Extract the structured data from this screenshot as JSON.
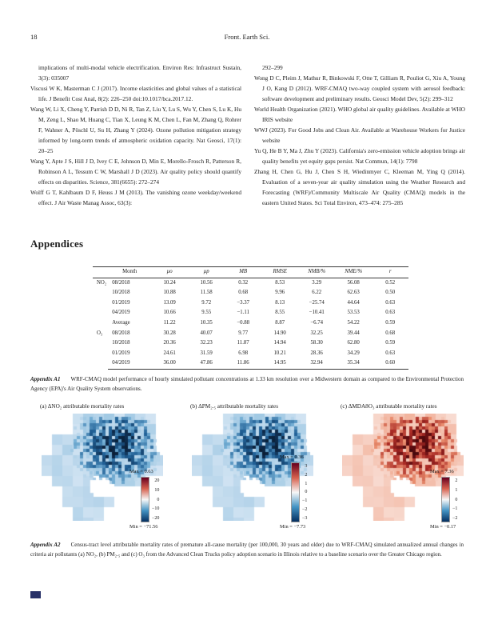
{
  "page": {
    "number": "18",
    "journal": "Front. Earth Sci."
  },
  "appendices_heading": "Appendices",
  "references": {
    "left": [
      {
        "cont": true,
        "text": "implications of multi-modal vehicle electrification. Environ Res: Infrastruct Sustain, 3(3): 035007"
      },
      {
        "cont": false,
        "text": "Viscusi W K, Masterman C J (2017). Income elasticities and global values of a statistical life. J Benefit Cost Anal, 8(2): 226–250 doi:10.1017/bca.2017.12."
      },
      {
        "cont": false,
        "text": "Wang W, Li X, Cheng Y, Parrish D D, Ni R, Tan Z, Liu Y, Lu S, Wu Y, Chen S, Lu K, Hu M, Zeng L, Shao M, Huang C, Tian X, Leung K M, Chen L, Fan M, Zhang Q, Rohrer F, Wahner A, Pöschl U, Su H, Zhang Y (2024). Ozone pollution mitigation strategy informed by long-term trends of atmospheric oxidation capacity. Nat Geosci, 17(1): 20–25"
      },
      {
        "cont": false,
        "text": "Wang Y, Apte J S, Hill J D, Ivey C E, Johnson D, Min E, Morello-Frosch R, Patterson R, Robinson A L, Tessum C W, Marshall J D (2023). Air quality policy should quantify effects on disparities. Science, 381(6655): 272–274"
      },
      {
        "cont": false,
        "text": "Wolff G T, Kahlbaum D F, Heuss J M (2013). The vanishing ozone weekday/weekend effect. J Air Waste Manag Assoc, 63(3):"
      }
    ],
    "right": [
      {
        "cont": true,
        "text": "292–299"
      },
      {
        "cont": false,
        "text": "Wong D C, Pleim J, Mathur R, Binkowski F, Otte T, Gilliam R, Pouliot G, Xiu A, Young J O, Kang D (2012). WRF-CMAQ two-way coupled system with aerosol feedback: software development and preliminary results. Geosci Model Dev, 5(2): 299–312"
      },
      {
        "cont": false,
        "text": "World Health Organization (2021). WHO global air quality guidelines. Available at WHO IRIS website"
      },
      {
        "cont": false,
        "text": "WWJ (2023). For Good Jobs and Clean Air. Available at Warehouse Workers for Justice website"
      },
      {
        "cont": false,
        "text": "Yu Q, He B Y, Ma J, Zhu Y (2023). California's zero-emission vehicle adoption brings air quality benefits yet equity gaps persist. Nat Commun, 14(1): 7798"
      },
      {
        "cont": false,
        "text": "Zhang H, Chen G, Hu J, Chen S H, Wiedinmyer C, Kleeman M, Ying Q (2014). Evaluation of a seven-year air quality simulation using the Weather Research and Forecasting (WRF)/Community Multiscale Air Quality (CMAQ) models in the eastern United States. Sci Total Environ, 473–474: 275–285"
      }
    ]
  },
  "table": {
    "col_headers": [
      "",
      "Month",
      "μo",
      "μp",
      "MB",
      "RMSE",
      "NMB/%",
      "NME/%",
      "r"
    ],
    "groups": [
      {
        "pollutant": "NO₂",
        "rows": [
          [
            "08/2018",
            "10.24",
            "10.56",
            "0.32",
            "8.53",
            "3.29",
            "56.08",
            "0.52"
          ],
          [
            "10/2018",
            "10.88",
            "11.58",
            "0.68",
            "9.96",
            "6.22",
            "62.63",
            "0.50"
          ],
          [
            "01/2019",
            "13.09",
            "9.72",
            "−3.37",
            "8.13",
            "−25.74",
            "44.64",
            "0.63"
          ],
          [
            "04/2019",
            "10.66",
            "9.55",
            "−1.11",
            "8.55",
            "−10.41",
            "53.53",
            "0.63"
          ],
          [
            "Average",
            "11.22",
            "10.35",
            "−0.88",
            "8.87",
            "−6.74",
            "54.22",
            "0.59"
          ]
        ]
      },
      {
        "pollutant": "O₃",
        "rows": [
          [
            "08/2018",
            "30.28",
            "40.07",
            "9.77",
            "14.90",
            "32.25",
            "39.44",
            "0.68"
          ],
          [
            "10/2018",
            "20.36",
            "32.23",
            "11.87",
            "14.94",
            "58.30",
            "62.80",
            "0.59"
          ],
          [
            "01/2019",
            "24.61",
            "31.59",
            "6.98",
            "10.21",
            "28.36",
            "34.29",
            "0.63"
          ],
          [
            "04/2019",
            "36.00",
            "47.86",
            "11.86",
            "14.95",
            "32.94",
            "35.34",
            "0.60"
          ]
        ]
      }
    ]
  },
  "table_caption": {
    "label": "Appendix A1",
    "text": "WRF-CMAQ model performance of hourly simulated pollutant concentrations at 1.33 km resolution over a Midwestern domain as compared to the Environmental Protection Agency (EPA)'s Air Quality System observations."
  },
  "figures": [
    {
      "title": "(a) ΔNO₂ attributable mortality rates",
      "palette": "blue",
      "max_label": "Max = 0.63",
      "min_label": "Min = −71.56",
      "colorbar_ticks": [
        "20",
        "10",
        "0",
        "−10",
        "−20"
      ],
      "seed": 7
    },
    {
      "title": "(b) ΔPM₂.₅ attributable mortality rates",
      "palette": "blue",
      "max_label": "Max = 0.36",
      "min_label": "Min = −7.73",
      "colorbar_ticks": [
        "3",
        "2",
        "1",
        "0",
        "−1",
        "−2",
        "−3"
      ],
      "seed": 7
    },
    {
      "title": "(c) ΔMDA8O₃ attributable mortality rates",
      "palette": "red",
      "max_label": "Max = 7.36",
      "min_label": "Min = −0.17",
      "colorbar_ticks": [
        "2",
        "1",
        "0",
        "−1",
        "−2"
      ],
      "seed": 7
    }
  ],
  "figure_caption": {
    "label": "Appendix A2",
    "text": "Census-tract level attributable mortality rates of premature all-cause mortality (per 100,000, 30 years and older) due to WRF-CMAQ simulated annualized annual changes in criteria air pollutants (a) NO₂, (b) PM₂.₅ and (c) O₃ from the Advanced Clean Trucks policy adoption scenario in Illinois relative to a baseline scenario over the Greater Chicago region."
  },
  "colors": {
    "footer_mark": "#273168",
    "colorbar": [
      "#67001f",
      "#d6604d",
      "#f7f7f7",
      "#4393c3",
      "#053061"
    ]
  }
}
